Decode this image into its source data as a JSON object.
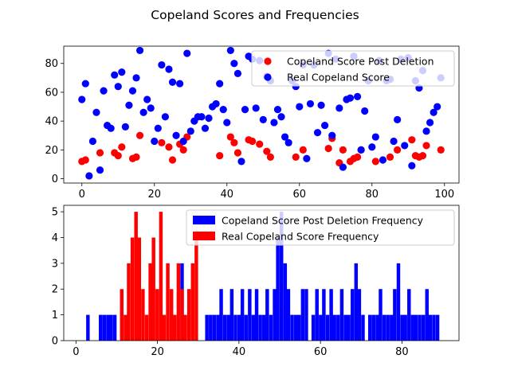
{
  "figure": {
    "title": "Copeland Scores and Frequencies"
  },
  "chart_data": [
    {
      "type": "scatter",
      "xlim": [
        -5,
        104
      ],
      "ylim": [
        -3,
        92
      ],
      "xticks": [
        0,
        20,
        40,
        60,
        80,
        100
      ],
      "yticks": [
        0,
        20,
        40,
        60,
        80
      ],
      "grid": false,
      "legend_position": "top-right",
      "series": [
        {
          "name": "Copeland Score Post Deletion",
          "color": "#ff0000",
          "x": [
            0,
            1,
            5,
            9,
            10,
            11,
            14,
            15,
            16,
            22,
            24,
            25,
            27,
            28,
            29,
            38,
            41,
            42,
            43,
            46,
            47,
            49,
            51,
            52,
            59,
            61,
            68,
            69,
            71,
            72,
            74,
            75,
            76,
            77,
            81,
            85,
            87,
            91,
            92,
            93,
            94,
            95,
            99
          ],
          "y": [
            12,
            13,
            18,
            18,
            16,
            22,
            14,
            15,
            30,
            25,
            22,
            13,
            24,
            20,
            29,
            16,
            29,
            25,
            18,
            27,
            26,
            24,
            19,
            15,
            15,
            20,
            21,
            28,
            11,
            20,
            12,
            14,
            15,
            20,
            12,
            15,
            20,
            27,
            16,
            15,
            16,
            23,
            20
          ]
        },
        {
          "name": "Real Copeland Score",
          "color": "#0000ff",
          "x": [
            0,
            1,
            2,
            3,
            4,
            5,
            6,
            7,
            8,
            9,
            10,
            11,
            12,
            13,
            14,
            15,
            16,
            17,
            18,
            19,
            20,
            21,
            22,
            23,
            24,
            25,
            26,
            27,
            28,
            29,
            30,
            31,
            32,
            33,
            34,
            35,
            36,
            37,
            38,
            39,
            40,
            41,
            42,
            43,
            44,
            45,
            46,
            47,
            48,
            49,
            50,
            51,
            52,
            53,
            54,
            55,
            56,
            57,
            58,
            59,
            60,
            61,
            62,
            63,
            64,
            65,
            66,
            67,
            68,
            69,
            70,
            71,
            72,
            73,
            74,
            75,
            76,
            77,
            78,
            79,
            80,
            81,
            82,
            83,
            84,
            85,
            86,
            87,
            88,
            89,
            90,
            91,
            92,
            93,
            94,
            95,
            96,
            97,
            98,
            99
          ],
          "y": [
            55,
            66,
            2,
            26,
            46,
            6,
            61,
            37,
            35,
            72,
            64,
            74,
            36,
            51,
            61,
            70,
            89,
            46,
            55,
            49,
            26,
            35,
            79,
            43,
            76,
            67,
            30,
            66,
            26,
            87,
            33,
            40,
            43,
            43,
            35,
            42,
            50,
            52,
            66,
            48,
            39,
            89,
            80,
            73,
            12,
            48,
            85,
            83,
            49,
            82,
            41,
            71,
            68,
            39,
            48,
            43,
            29,
            25,
            68,
            64,
            50,
            79,
            14,
            52,
            79,
            32,
            51,
            37,
            87,
            30,
            83,
            49,
            8,
            55,
            56,
            85,
            57,
            20,
            47,
            68,
            22,
            29,
            82,
            13,
            68,
            69,
            26,
            41,
            83,
            23,
            84,
            9,
            68,
            63,
            75,
            33,
            39,
            46,
            50,
            70
          ],
          "hidden_under_legend_note": ""
        }
      ]
    },
    {
      "type": "bar",
      "subtype": "histogram",
      "xlim": [
        -3,
        94
      ],
      "ylim": [
        0,
        5.25
      ],
      "xticks": [
        0,
        20,
        40,
        60,
        80
      ],
      "yticks": [
        0,
        1,
        2,
        3,
        4,
        5
      ],
      "grid": false,
      "legend_position": "top-right",
      "series": [
        {
          "name": "Copeland Score Post Deletion Frequency",
          "color": "#0000ff",
          "bin_width": 0.87,
          "bins_start": [
            2.5,
            5.6,
            6.5,
            7.4,
            8.2,
            9.1,
            25.6,
            31.7,
            32.6,
            33.5,
            34.4,
            35.2,
            36.1,
            37.0,
            37.8,
            38.7,
            39.6,
            40.4,
            41.3,
            42.2,
            43.1,
            43.9,
            44.8,
            45.7,
            46.5,
            47.4,
            48.3,
            49.1,
            50.0,
            50.9,
            51.7,
            52.6,
            53.5,
            54.3,
            55.2,
            56.1,
            57.8,
            58.7,
            59.6,
            60.4,
            61.3,
            62.2,
            63.0,
            63.9,
            64.8,
            65.7,
            66.5,
            67.4,
            68.3,
            69.1,
            70.0,
            71.7,
            72.6,
            73.5,
            74.3,
            75.2,
            76.1,
            77.0,
            77.8,
            78.7,
            79.6,
            80.4,
            81.3,
            82.2,
            83.0,
            83.9,
            84.8,
            85.7,
            86.5,
            87.4,
            88.3
          ],
          "values": [
            1,
            1,
            1,
            1,
            1,
            1,
            3,
            1,
            1,
            1,
            1,
            2,
            1,
            1,
            2,
            1,
            1,
            2,
            1,
            2,
            1,
            2,
            1,
            1,
            2,
            1,
            2,
            4,
            5,
            3,
            2,
            1,
            1,
            1,
            2,
            2,
            1,
            2,
            1,
            2,
            1,
            2,
            1,
            1,
            2,
            1,
            1,
            2,
            3,
            2,
            1,
            1,
            1,
            1,
            2,
            1,
            1,
            1,
            2,
            3,
            1,
            1,
            2,
            1,
            1,
            1,
            1,
            2,
            1,
            1,
            1
          ]
        },
        {
          "name": "Real Copeland Score Frequency",
          "color": "#ff0000",
          "bin_width": 0.87,
          "bins_start": [
            10.8,
            11.7,
            12.5,
            13.4,
            14.3,
            15.1,
            16.0,
            16.9,
            17.8,
            18.6,
            19.5,
            20.4,
            21.2,
            22.1,
            23.0,
            23.8,
            24.7,
            25.6,
            26.4,
            27.3,
            28.2,
            29.1
          ],
          "values": [
            2,
            1,
            3,
            4,
            5,
            4,
            2,
            1,
            3,
            4,
            2,
            5,
            1,
            3,
            2,
            1,
            3,
            2,
            1,
            2,
            3,
            4
          ]
        }
      ]
    }
  ]
}
